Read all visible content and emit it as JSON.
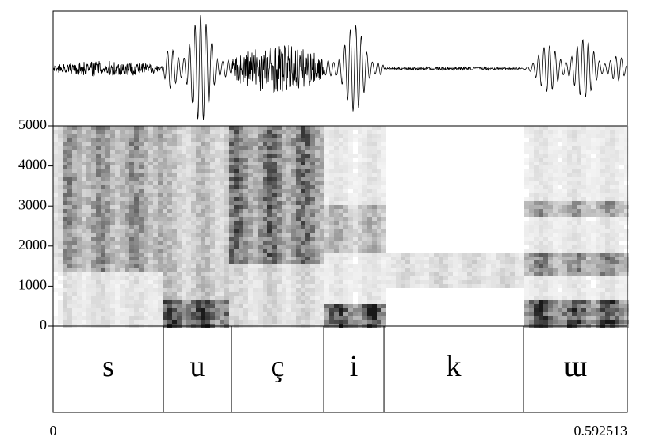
{
  "chart_data": {
    "type": "spectrogram",
    "xlim": [
      0,
      0.592513
    ],
    "xticks": [
      0,
      0.592513
    ],
    "ylim": [
      0,
      5000
    ],
    "yticks": [
      0,
      1000,
      2000,
      3000,
      4000,
      5000
    ],
    "intervals": [
      {
        "xmin": 0,
        "xmax": 0.1138,
        "text": "s"
      },
      {
        "xmin": 0.1138,
        "xmax": 0.1841,
        "text": "u"
      },
      {
        "xmin": 0.1841,
        "xmax": 0.2791,
        "text": "ç"
      },
      {
        "xmin": 0.2791,
        "xmax": 0.3413,
        "text": "i"
      },
      {
        "xmin": 0.3413,
        "xmax": 0.4853,
        "text": "k"
      },
      {
        "xmin": 0.4853,
        "xmax": 0.592513,
        "text": "ɯ"
      }
    ]
  }
}
